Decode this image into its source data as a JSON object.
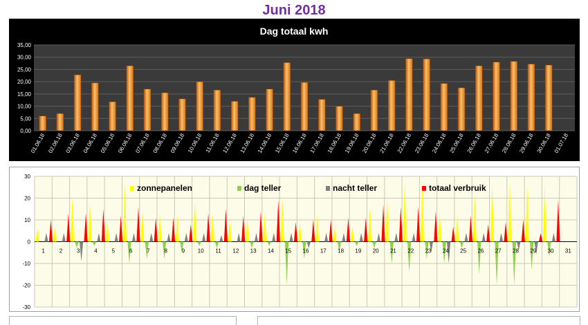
{
  "page_title": "Juni 2018",
  "chart_data": [
    {
      "type": "bar",
      "title": "Dag totaal kwh",
      "xlabel": "",
      "ylabel": "",
      "ylim": [
        0,
        35
      ],
      "yticks": [
        "0,00",
        "5,00",
        "10,00",
        "15,00",
        "20,00",
        "25,00",
        "30,00",
        "35,00"
      ],
      "grid": true,
      "legend": "none",
      "colors": {
        "background": "#000000",
        "plot_area": "#3a3a3a",
        "bar": "#f08a1c",
        "bar_dark": "#b8560a",
        "bar_light": "#fbc06a",
        "text": "#ffffff"
      },
      "categories": [
        "01.06.18",
        "02.06.18",
        "03.06.18",
        "04.06.18",
        "05.06.18",
        "06.06.18",
        "07.06.18",
        "08.06.18",
        "09.06.18",
        "10.06.18",
        "11.06.18",
        "12.06.18",
        "13.06.18",
        "14.06.18",
        "15.06.18",
        "16.06.18",
        "17.06.18",
        "18.06.18",
        "19.06.18",
        "20.06.18",
        "21.06.18",
        "22.06.18",
        "23.06.18",
        "24.06.18",
        "25.06.18",
        "26.06.18",
        "27.06.18",
        "28.06.18",
        "29.06.18",
        "30.06.18",
        "01.07.18"
      ],
      "values": [
        6,
        7,
        22.8,
        19.5,
        11.8,
        26.5,
        17,
        15.5,
        13,
        20,
        16.6,
        12,
        13.6,
        17,
        27.8,
        19.7,
        12.8,
        10,
        7,
        16.6,
        20.5,
        29.4,
        29.3,
        19.3,
        17.5,
        26.5,
        28,
        28.3,
        27.2,
        26.8,
        0
      ]
    },
    {
      "type": "area",
      "ylim": [
        -30,
        30
      ],
      "yticks": [
        "30",
        "20",
        "10",
        "0",
        "-10",
        "-20",
        "-30"
      ],
      "grid": true,
      "legend": "top",
      "categories": [
        "1",
        "2",
        "3",
        "4",
        "5",
        "6",
        "7",
        "8",
        "9",
        "10",
        "11",
        "12",
        "13",
        "14",
        "15",
        "16",
        "17",
        "18",
        "19",
        "20",
        "21",
        "22",
        "23",
        "24",
        "25",
        "26",
        "27",
        "28",
        "29",
        "30",
        "31"
      ],
      "colors": {
        "background": "#fdfce8",
        "grid": "#c8c8b4"
      },
      "series": [
        {
          "name": "zonnepanelen",
          "color": "#ffff00",
          "values": [
            6,
            7,
            20,
            18,
            10,
            26,
            15,
            13,
            12,
            19,
            13,
            9,
            11,
            13,
            20,
            9,
            12,
            7,
            7,
            15,
            20,
            28,
            27,
            13,
            12,
            22,
            27,
            27,
            26,
            26,
            0
          ]
        },
        {
          "name": "dag teller",
          "color": "#8fd14f",
          "values": [
            0,
            0,
            -3,
            -2,
            0,
            -10,
            -8,
            -8,
            -5,
            -2,
            -3,
            0,
            -3,
            -2,
            -20,
            -8,
            0,
            -5,
            -2,
            -3,
            -10,
            -14,
            -8,
            -10,
            -3,
            -15,
            -20,
            -20,
            -13,
            -7,
            0
          ]
        },
        {
          "name": "nacht teller",
          "color": "#7f7f7f",
          "values": [
            4,
            4,
            -9,
            4,
            4,
            4,
            4,
            4,
            4,
            4,
            3,
            4,
            4,
            4,
            4,
            -3,
            4,
            4,
            4,
            4,
            4,
            4,
            -5,
            -10,
            4,
            4,
            4,
            -4,
            -6,
            4,
            0
          ]
        },
        {
          "name": "totaal verbruik",
          "color": "#ff0000",
          "values": [
            10,
            13,
            13,
            15,
            12,
            16,
            11,
            11,
            8,
            13,
            15,
            12,
            14,
            19,
            9,
            10,
            10,
            11,
            11,
            17,
            16,
            16,
            14,
            7,
            12,
            8,
            9,
            10,
            4,
            19,
            0
          ]
        }
      ]
    }
  ]
}
